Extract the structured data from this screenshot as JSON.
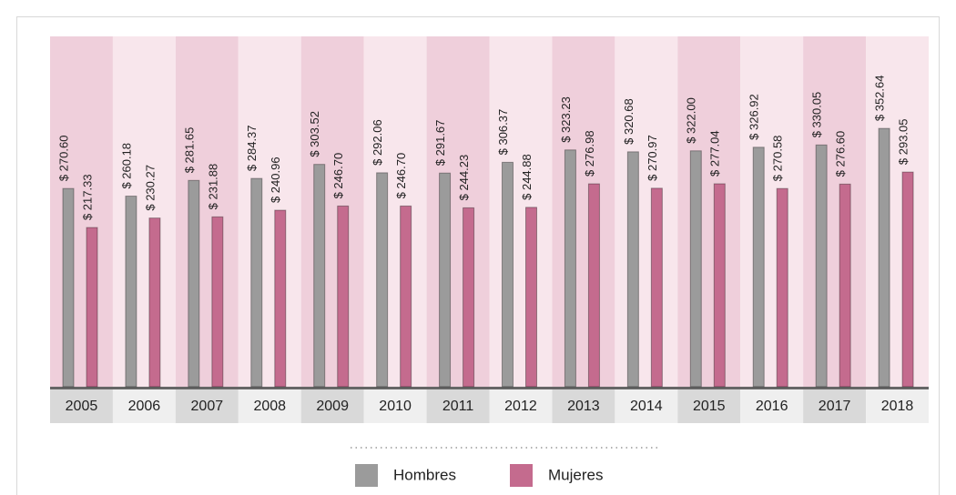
{
  "chart_data": {
    "type": "bar",
    "categories": [
      "2005",
      "2006",
      "2007",
      "2008",
      "2009",
      "2010",
      "2011",
      "2012",
      "2013",
      "2014",
      "2015",
      "2016",
      "2017",
      "2018"
    ],
    "series": [
      {
        "name": "Hombres",
        "color": "#9b9b9b",
        "values": [
          270.6,
          260.18,
          281.65,
          284.37,
          303.52,
          292.06,
          291.67,
          306.37,
          323.23,
          320.68,
          322.0,
          326.92,
          330.05,
          352.64
        ],
        "value_labels": [
          "$ 270.60",
          "$ 260.18",
          "$ 281.65",
          "$ 284.37",
          "$ 303.52",
          "$ 292.06",
          "$ 291.67",
          "$ 306.37",
          "$ 323.23",
          "$ 320.68",
          "$ 322.00",
          "$ 326.92",
          "$ 330.05",
          "$ 352.64"
        ]
      },
      {
        "name": "Mujeres",
        "color": "#c46b8e",
        "values": [
          217.33,
          230.27,
          231.88,
          240.96,
          246.7,
          246.7,
          244.23,
          244.88,
          276.98,
          270.97,
          277.04,
          270.58,
          276.6,
          293.05
        ],
        "value_labels": [
          "$ 217.33",
          "$ 230.27",
          "$ 231.88",
          "$ 240.96",
          "$ 246.70",
          "$ 246.70",
          "$ 244.23",
          "$ 244.88",
          "$ 276.98",
          "$ 270.97",
          "$ 277.04",
          "$ 270.58",
          "$ 276.60",
          "$ 293.05"
        ]
      }
    ]
  }
}
